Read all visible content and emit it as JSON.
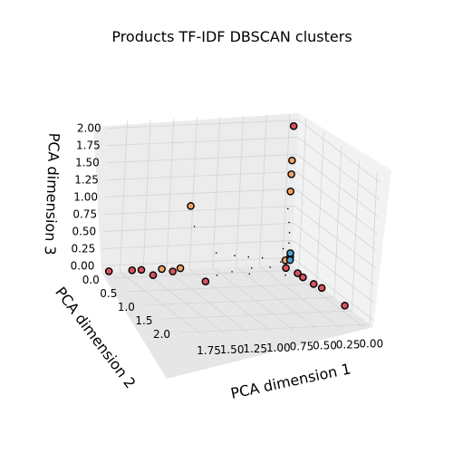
{
  "chart_data": {
    "type": "scatter",
    "title": "Products TF-IDF DBSCAN clusters",
    "xlabel": "PCA dimension 1",
    "ylabel": "PCA dimension 2",
    "zlabel": "PCA dimension 3",
    "x_ticks": [
      "1.75",
      "1.50",
      "1.25",
      "1.00",
      "0.75",
      "0.50",
      "0.25",
      "0.00"
    ],
    "y_ticks": [
      "0.0",
      "0.5",
      "1.0",
      "1.5",
      "2.0"
    ],
    "z_ticks": [
      "0.00",
      "0.25",
      "0.50",
      "0.75",
      "1.00",
      "1.25",
      "1.50",
      "1.75",
      "2.00"
    ],
    "xlim": [
      -0.1,
      1.95
    ],
    "ylim": [
      -0.2,
      2.1
    ],
    "zlim": [
      -0.1,
      2.1
    ],
    "grid": true,
    "series": [
      {
        "color": "#d9535f",
        "points": [
          [
            1.95,
            0.0,
            0.0
          ],
          [
            1.7,
            0.0,
            0.0
          ],
          [
            1.6,
            0.0,
            0.0
          ],
          [
            1.55,
            0.2,
            0.0
          ],
          [
            1.3,
            0.1,
            0.0
          ],
          [
            1.1,
            0.5,
            0.0
          ],
          [
            0.1,
            0.15,
            0.0
          ],
          [
            0.05,
            0.35,
            0.0
          ],
          [
            0.05,
            0.5,
            0.0
          ],
          [
            0.03,
            0.75,
            0.0
          ],
          [
            0.0,
            0.9,
            0.0
          ],
          [
            0.0,
            1.55,
            0.0
          ],
          [
            0.03,
            0.0,
            2.0
          ]
        ]
      },
      {
        "color": "#f4a261",
        "points": [
          [
            1.1,
            0.0,
            0.9
          ],
          [
            1.38,
            0.0,
            0.0
          ],
          [
            1.18,
            0.0,
            0.0
          ],
          [
            0.03,
            0.0,
            1.5
          ],
          [
            0.03,
            0.0,
            1.3
          ],
          [
            0.03,
            0.0,
            1.05
          ],
          [
            0.05,
            0.0,
            0.05
          ]
        ]
      },
      {
        "color": "#4fa3d1",
        "points": [
          [
            0.0,
            0.0,
            0.1
          ],
          [
            0.0,
            0.0,
            0.05
          ],
          [
            0.0,
            0.0,
            0.15
          ]
        ]
      },
      {
        "color": "#000000",
        "noise": true,
        "points": [
          [
            0.02,
            0.0,
            0.3
          ],
          [
            0.02,
            0.0,
            0.45
          ],
          [
            0.03,
            0.0,
            0.6
          ],
          [
            0.05,
            0.0,
            0.8
          ],
          [
            0.3,
            0.0,
            0.1
          ],
          [
            0.45,
            0.0,
            0.12
          ],
          [
            0.6,
            0.0,
            0.15
          ],
          [
            0.25,
            0.1,
            0.0
          ],
          [
            0.45,
            0.1,
            0.0
          ],
          [
            0.7,
            0.2,
            0.0
          ],
          [
            0.9,
            0.3,
            0.0
          ],
          [
            0.1,
            0.6,
            0.0
          ],
          [
            0.2,
            0.4,
            0.0
          ],
          [
            1.05,
            0.0,
            0.6
          ],
          [
            0.08,
            0.0,
            0.22
          ],
          [
            0.12,
            0.05,
            0.05
          ],
          [
            0.8,
            0.0,
            0.2
          ],
          [
            0.55,
            0.3,
            0.0
          ]
        ]
      }
    ]
  }
}
